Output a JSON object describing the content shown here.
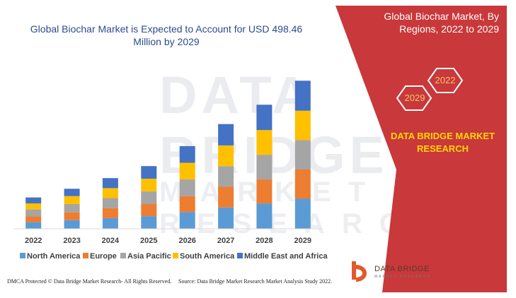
{
  "chart_data": {
    "type": "bar",
    "stacked": true,
    "title": "Global Biochar Market is Expected to Account for USD 498.46 Million by 2029",
    "categories": [
      "2022",
      "2023",
      "2024",
      "2025",
      "2026",
      "2027",
      "2028",
      "2029"
    ],
    "series": [
      {
        "name": "North America",
        "color": "#5b9bd5",
        "values": [
          10,
          13,
          16,
          19,
          25,
          32,
          38,
          45
        ]
      },
      {
        "name": "Europe",
        "color": "#ed7d31",
        "values": [
          9,
          12,
          15,
          18,
          24,
          31,
          36,
          44
        ]
      },
      {
        "name": "Asia Pacific",
        "color": "#a5a5a5",
        "values": [
          10,
          12,
          15,
          19,
          25,
          31,
          37,
          44
        ]
      },
      {
        "name": "South America",
        "color": "#ffc000",
        "values": [
          9,
          12,
          15,
          19,
          25,
          31,
          37,
          44
        ]
      },
      {
        "name": "Middle East and Africa",
        "color": "#4472c4",
        "values": [
          9,
          11,
          15,
          19,
          25,
          32,
          38,
          45
        ]
      }
    ],
    "ylim": [
      0,
      235
    ],
    "xlabel": "",
    "ylabel": "",
    "grid": false,
    "legend": "bottom"
  },
  "side_panel": {
    "title": "Global Biochar Market, By Regions, 2022 to 2029",
    "hex_start": "2022",
    "hex_end": "2029",
    "brand": "DATA BRIDGE MARKET RESEARCH",
    "panel_color": "#c9383a"
  },
  "logo": {
    "name": "DATA BRIDGE",
    "tagline": "MARKET RESEARCH"
  },
  "footer": {
    "left": "DMCA Protected © Data Bridge Market Research- All Rights Reserved.",
    "right": "Source: Data Bridge Market Research Market Analysis Study 2022."
  }
}
